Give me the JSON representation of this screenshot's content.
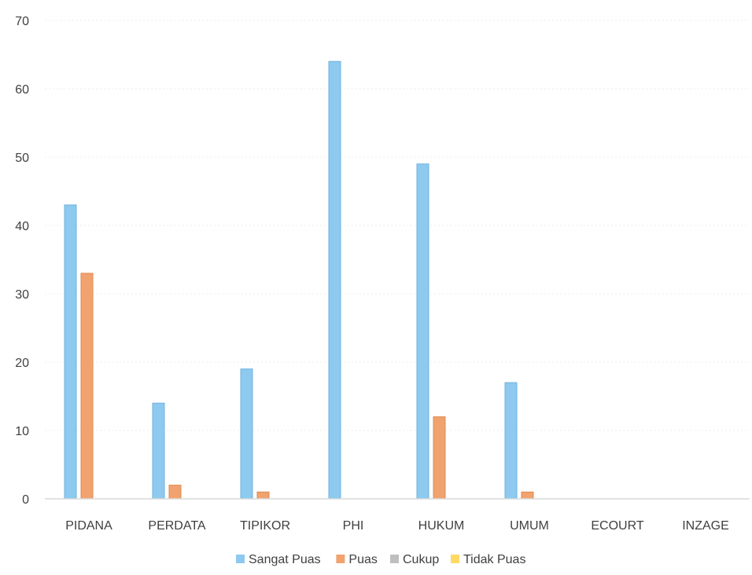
{
  "chart_data": {
    "type": "bar",
    "title": "",
    "xlabel": "",
    "ylabel": "",
    "categories": [
      "PIDANA",
      "PERDATA",
      "TIPIKOR",
      "PHI",
      "HUKUM",
      "UMUM",
      "ECOURT",
      "INZAGE"
    ],
    "series": [
      {
        "name": "Sangat Puas",
        "color": "#8ec9ef",
        "edge": "#6fb2e0",
        "values": [
          43,
          14,
          19,
          64,
          49,
          17,
          0,
          0
        ]
      },
      {
        "name": "Puas",
        "color": "#f0a36e",
        "edge": "#e08a52",
        "values": [
          33,
          2,
          1,
          0,
          12,
          1,
          0,
          0
        ]
      },
      {
        "name": "Cukup",
        "color": "#bfbfbf",
        "edge": "#a6a6a6",
        "values": [
          0,
          0,
          0,
          0,
          0,
          0,
          0,
          0
        ]
      },
      {
        "name": "Tidak Puas",
        "color": "#ffd966",
        "edge": "#f2c94c",
        "values": [
          0,
          0,
          0,
          0,
          0,
          0,
          0,
          0
        ]
      }
    ],
    "ylim": [
      0,
      70
    ],
    "yticks": [
      0,
      10,
      20,
      30,
      40,
      50,
      60,
      70
    ],
    "grid": true,
    "legend_position": "bottom"
  }
}
